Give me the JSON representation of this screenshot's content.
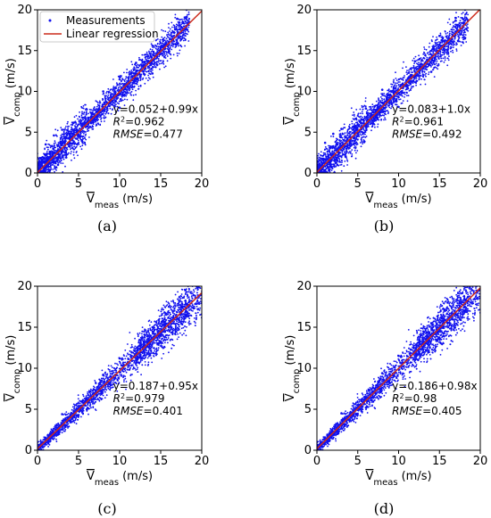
{
  "colors": {
    "points": "#1010ee",
    "line": "#cc2a1a",
    "axis": "#000000"
  },
  "legend": {
    "points_label": "Measurements",
    "line_label": "Linear regression"
  },
  "xlabel": "V̄meas (m/s)",
  "ylabel": "V̄comp (m/s)",
  "xlabel_parts": {
    "symbol": "V",
    "sub": "meas",
    "unit": "(m/s)"
  },
  "ylabel_parts": {
    "symbol": "V",
    "sub": "comp",
    "unit": "(m/s)"
  },
  "annotation_labels": {
    "r2": "R",
    "rmse": "RMSE"
  },
  "panels": [
    {
      "caption": "(a)",
      "equation": "y=0.052+0.99x",
      "r2_value": "=0.962",
      "rmse_value": "=0.477"
    },
    {
      "caption": "(b)",
      "equation": "y=0.083+1.0x",
      "r2_value": "=0.961",
      "rmse_value": "=0.492"
    },
    {
      "caption": "(c)",
      "equation": "y=0.187+0.95x",
      "r2_value": "=0.979",
      "rmse_value": "=0.401"
    },
    {
      "caption": "(d)",
      "equation": "y=0.186+0.98x",
      "r2_value": "=0.98",
      "rmse_value": "=0.405"
    }
  ],
  "chart_data": [
    {
      "type": "scatter",
      "xlim": [
        0,
        20
      ],
      "ylim": [
        0,
        20
      ],
      "xticks": [
        0,
        5,
        10,
        15,
        20
      ],
      "yticks": [
        0,
        5,
        10,
        15,
        20
      ],
      "xlabel": "V̄meas (m/s)",
      "ylabel": "V̄comp (m/s)",
      "legend_position": "top-left",
      "regression": {
        "intercept": 0.052,
        "slope": 0.99
      },
      "r2": 0.962,
      "rmse": 0.477,
      "series": [
        {
          "name": "Measurements",
          "values": [
            [
              0.4,
              0.6
            ],
            [
              1.0,
              1.5
            ],
            [
              1.5,
              2.6
            ],
            [
              2.0,
              2.4
            ],
            [
              2.5,
              3.4
            ],
            [
              3.0,
              2.6
            ],
            [
              3.5,
              4.3
            ],
            [
              4.0,
              3.6
            ],
            [
              4.5,
              5.2
            ],
            [
              5.0,
              4.7
            ],
            [
              5.5,
              6.0
            ],
            [
              6.0,
              5.7
            ],
            [
              6.5,
              6.8
            ],
            [
              7.0,
              6.6
            ],
            [
              7.5,
              7.9
            ],
            [
              8.0,
              7.7
            ],
            [
              8.5,
              8.6
            ],
            [
              9.0,
              8.8
            ],
            [
              9.5,
              9.9
            ],
            [
              10.0,
              9.6
            ],
            [
              10.5,
              10.7
            ],
            [
              11.0,
              10.6
            ],
            [
              11.5,
              11.8
            ],
            [
              12.0,
              11.6
            ],
            [
              12.5,
              12.6
            ],
            [
              13.0,
              12.9
            ],
            [
              13.5,
              13.7
            ],
            [
              14.0,
              13.8
            ],
            [
              14.5,
              14.3
            ],
            [
              15.0,
              15.2
            ],
            [
              15.5,
              15.5
            ],
            [
              16.0,
              16.1
            ],
            [
              16.5,
              16.3
            ],
            [
              17.0,
              16.9
            ],
            [
              17.5,
              17.8
            ],
            [
              18.0,
              17.6
            ],
            [
              1.0,
              3.5
            ],
            [
              2.0,
              4.6
            ],
            [
              3.0,
              5.3
            ],
            [
              1.5,
              0.3
            ],
            [
              3.5,
              1.9
            ],
            [
              8.0,
              10.0
            ],
            [
              10.0,
              8.0
            ],
            [
              12.0,
              13.5
            ],
            [
              14.0,
              12.2
            ],
            [
              14.0,
              15.6
            ],
            [
              16.0,
              14.8
            ],
            [
              17.0,
              18.9
            ],
            [
              2.5,
              1.0
            ],
            [
              6.0,
              7.8
            ]
          ]
        },
        {
          "name": "Linear regression",
          "x": [
            0,
            20
          ],
          "y": [
            0.052,
            19.852
          ]
        }
      ]
    },
    {
      "type": "scatter",
      "xlim": [
        0,
        20
      ],
      "ylim": [
        0,
        20
      ],
      "xticks": [
        0,
        5,
        10,
        15,
        20
      ],
      "yticks": [
        0,
        5,
        10,
        15,
        20
      ],
      "xlabel": "V̄meas (m/s)",
      "ylabel": "V̄comp (m/s)",
      "regression": {
        "intercept": 0.083,
        "slope": 1.0
      },
      "r2": 0.961,
      "rmse": 0.492,
      "series": [
        {
          "name": "Measurements",
          "values": [
            [
              0.4,
              0.7
            ],
            [
              1.0,
              1.6
            ],
            [
              1.5,
              2.7
            ],
            [
              2.0,
              2.3
            ],
            [
              2.5,
              3.5
            ],
            [
              3.0,
              2.8
            ],
            [
              3.5,
              4.4
            ],
            [
              4.0,
              3.7
            ],
            [
              4.5,
              5.3
            ],
            [
              5.0,
              4.8
            ],
            [
              5.5,
              6.1
            ],
            [
              6.0,
              5.8
            ],
            [
              6.5,
              6.9
            ],
            [
              7.0,
              6.7
            ],
            [
              7.5,
              8.0
            ],
            [
              8.0,
              7.8
            ],
            [
              8.5,
              8.7
            ],
            [
              9.0,
              9.0
            ],
            [
              9.5,
              10.0
            ],
            [
              10.0,
              9.7
            ],
            [
              10.5,
              10.8
            ],
            [
              11.0,
              10.8
            ],
            [
              11.5,
              11.9
            ],
            [
              12.0,
              11.8
            ],
            [
              12.5,
              12.7
            ],
            [
              13.0,
              13.0
            ],
            [
              13.5,
              13.8
            ],
            [
              14.0,
              14.0
            ],
            [
              14.5,
              14.5
            ],
            [
              15.0,
              15.3
            ],
            [
              15.5,
              15.6
            ],
            [
              16.0,
              16.2
            ],
            [
              16.5,
              16.5
            ],
            [
              17.0,
              17.1
            ],
            [
              17.5,
              18.0
            ],
            [
              18.0,
              18.2
            ],
            [
              1.0,
              3.7
            ],
            [
              2.0,
              4.8
            ],
            [
              3.0,
              5.4
            ],
            [
              1.5,
              0.3
            ],
            [
              3.5,
              2.0
            ],
            [
              8.0,
              10.2
            ],
            [
              10.0,
              8.1
            ],
            [
              12.0,
              13.7
            ],
            [
              14.0,
              12.4
            ],
            [
              15.0,
              16.8
            ],
            [
              16.0,
              15.0
            ],
            [
              17.0,
              19.0
            ],
            [
              2.5,
              1.0
            ],
            [
              6.0,
              7.9
            ]
          ]
        },
        {
          "name": "Linear regression",
          "x": [
            0,
            20
          ],
          "y": [
            0.083,
            20.083
          ]
        }
      ]
    },
    {
      "type": "scatter",
      "xlim": [
        0,
        20
      ],
      "ylim": [
        0,
        20
      ],
      "xticks": [
        0,
        5,
        10,
        15,
        20
      ],
      "yticks": [
        0,
        5,
        10,
        15,
        20
      ],
      "xlabel": "V̄meas (m/s)",
      "ylabel": "V̄comp (m/s)",
      "regression": {
        "intercept": 0.187,
        "slope": 0.95
      },
      "r2": 0.979,
      "rmse": 0.401,
      "series": [
        {
          "name": "Measurements",
          "values": [
            [
              0.3,
              0.5
            ],
            [
              1.0,
              1.3
            ],
            [
              1.5,
              1.8
            ],
            [
              2.0,
              2.2
            ],
            [
              2.5,
              2.7
            ],
            [
              3.0,
              3.2
            ],
            [
              3.5,
              3.6
            ],
            [
              4.0,
              4.3
            ],
            [
              4.5,
              4.6
            ],
            [
              5.0,
              5.1
            ],
            [
              5.5,
              5.4
            ],
            [
              6.0,
              6.1
            ],
            [
              6.5,
              6.3
            ],
            [
              7.0,
              7.0
            ],
            [
              7.5,
              7.3
            ],
            [
              8.0,
              7.8
            ],
            [
              8.5,
              8.4
            ],
            [
              9.0,
              8.9
            ],
            [
              9.5,
              9.2
            ],
            [
              10.0,
              9.6
            ],
            [
              10.5,
              10.4
            ],
            [
              11.0,
              10.7
            ],
            [
              11.5,
              10.9
            ],
            [
              12.0,
              11.8
            ],
            [
              12.5,
              12.0
            ],
            [
              13.0,
              12.6
            ],
            [
              13.5,
              12.9
            ],
            [
              14.0,
              13.5
            ],
            [
              14.5,
              14.0
            ],
            [
              15.0,
              14.3
            ],
            [
              15.5,
              15.2
            ],
            [
              16.0,
              15.0
            ],
            [
              16.5,
              16.2
            ],
            [
              17.0,
              16.1
            ],
            [
              17.5,
              17.1
            ],
            [
              18.0,
              16.8
            ],
            [
              18.5,
              18.2
            ],
            [
              19.0,
              18.9
            ],
            [
              19.5,
              19.8
            ],
            [
              19.0,
              17.3
            ],
            [
              18.0,
              19.5
            ],
            [
              17.5,
              15.5
            ],
            [
              16.0,
              17.5
            ],
            [
              15.0,
              13.2
            ],
            [
              14.0,
              15.0
            ],
            [
              8.0,
              9.2
            ],
            [
              10.0,
              11.2
            ],
            [
              12.0,
              10.6
            ],
            [
              3.0,
              4.4
            ],
            [
              6.0,
              5.0
            ]
          ]
        },
        {
          "name": "Linear regression",
          "x": [
            0,
            20
          ],
          "y": [
            0.187,
            19.187
          ]
        }
      ]
    },
    {
      "type": "scatter",
      "xlim": [
        0,
        20
      ],
      "ylim": [
        0,
        20
      ],
      "xticks": [
        0,
        5,
        10,
        15,
        20
      ],
      "yticks": [
        0,
        5,
        10,
        15,
        20
      ],
      "xlabel": "V̄meas (m/s)",
      "ylabel": "V̄comp (m/s)",
      "regression": {
        "intercept": 0.186,
        "slope": 0.98
      },
      "r2": 0.98,
      "rmse": 0.405,
      "series": [
        {
          "name": "Measurements",
          "values": [
            [
              0.3,
              0.5
            ],
            [
              1.0,
              1.3
            ],
            [
              1.5,
              1.9
            ],
            [
              2.0,
              2.2
            ],
            [
              2.5,
              2.8
            ],
            [
              3.0,
              3.2
            ],
            [
              3.5,
              3.7
            ],
            [
              4.0,
              4.3
            ],
            [
              4.5,
              4.7
            ],
            [
              5.0,
              5.2
            ],
            [
              5.5,
              5.5
            ],
            [
              6.0,
              6.2
            ],
            [
              6.5,
              6.5
            ],
            [
              7.0,
              7.1
            ],
            [
              7.5,
              7.5
            ],
            [
              8.0,
              8.0
            ],
            [
              8.5,
              8.6
            ],
            [
              9.0,
              9.1
            ],
            [
              9.5,
              9.4
            ],
            [
              10.0,
              9.9
            ],
            [
              10.5,
              10.7
            ],
            [
              11.0,
              11.0
            ],
            [
              11.5,
              11.3
            ],
            [
              12.0,
              12.1
            ],
            [
              12.5,
              12.4
            ],
            [
              13.0,
              13.0
            ],
            [
              13.5,
              13.3
            ],
            [
              14.0,
              13.9
            ],
            [
              14.5,
              14.4
            ],
            [
              15.0,
              14.8
            ],
            [
              15.5,
              15.6
            ],
            [
              16.0,
              15.5
            ],
            [
              16.5,
              16.7
            ],
            [
              17.0,
              16.6
            ],
            [
              17.5,
              17.6
            ],
            [
              18.0,
              17.4
            ],
            [
              18.5,
              18.7
            ],
            [
              19.0,
              19.5
            ],
            [
              19.5,
              20.0
            ],
            [
              19.0,
              17.9
            ],
            [
              18.0,
              20.0
            ],
            [
              17.5,
              16.0
            ],
            [
              16.0,
              18.0
            ],
            [
              15.0,
              13.7
            ],
            [
              14.0,
              15.5
            ],
            [
              8.0,
              9.4
            ],
            [
              10.0,
              11.5
            ],
            [
              12.0,
              11.0
            ],
            [
              3.0,
              4.5
            ],
            [
              6.0,
              5.2
            ]
          ]
        },
        {
          "name": "Linear regression",
          "x": [
            0,
            20
          ],
          "y": [
            0.186,
            19.786
          ]
        }
      ]
    }
  ]
}
